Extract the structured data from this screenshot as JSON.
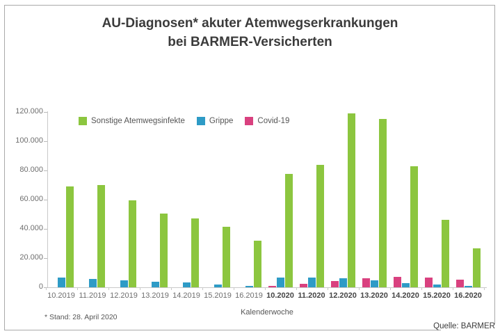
{
  "title": {
    "line1": "AU-Diagnosen* akuter Atemwegserkrankungen",
    "line2": "bei BARMER-Versicherten"
  },
  "footnote": "* Stand: 28. April 2020",
  "source": "Quelle: BARMER",
  "colors": {
    "sonstige_green": "#8cc63f",
    "grippe_blue": "#2e9bc6",
    "covid_pink": "#d9417f",
    "axis_gray": "#c9c9c9",
    "text_gray": "#6e6e6e"
  },
  "chart_data": {
    "type": "bar",
    "title": "AU-Diagnosen* akuter Atemwegserkrankungen bei BARMER-Versicherten",
    "xlabel": "Kalenderwoche",
    "ylabel": "",
    "ylim": [
      0,
      120000
    ],
    "ytick_step": 20000,
    "ytick_labels": [
      "0",
      "20.000",
      "40.000",
      "60.000",
      "80.000",
      "100.000",
      "120.000"
    ],
    "grid": false,
    "legend_position": "top-left inside plot",
    "bar_order_in_group": [
      "Covid-19",
      "Grippe",
      "Sonstige Atemwegsinfekte"
    ],
    "categories": [
      {
        "label": "10.2019",
        "bold": false
      },
      {
        "label": "11.2019",
        "bold": false
      },
      {
        "label": "12.2019",
        "bold": false
      },
      {
        "label": "13.2019",
        "bold": false
      },
      {
        "label": "14.2019",
        "bold": false
      },
      {
        "label": "15.2019",
        "bold": false
      },
      {
        "label": "16.2019",
        "bold": false
      },
      {
        "label": "10.2020",
        "bold": true
      },
      {
        "label": "11.2020",
        "bold": true
      },
      {
        "label": "12.2020",
        "bold": true
      },
      {
        "label": "13.2020",
        "bold": true
      },
      {
        "label": "14.2020",
        "bold": true
      },
      {
        "label": "15.2020",
        "bold": true
      },
      {
        "label": "16.2020",
        "bold": true
      }
    ],
    "series": [
      {
        "name": "Sonstige Atemwegsinfekte",
        "color": "#8cc63f",
        "values": [
          69000,
          70000,
          59500,
          50500,
          47000,
          41500,
          32000,
          77500,
          84000,
          119000,
          115000,
          83000,
          46000,
          26500
        ]
      },
      {
        "name": "Grippe",
        "color": "#2e9bc6",
        "values": [
          6700,
          5900,
          4900,
          3700,
          3200,
          1900,
          1000,
          6500,
          6800,
          6200,
          4600,
          2900,
          1900,
          800
        ]
      },
      {
        "name": "Covid-19",
        "color": "#d9417f",
        "values": [
          0,
          0,
          0,
          0,
          0,
          0,
          0,
          1000,
          2500,
          4500,
          6000,
          7000,
          6500,
          5000
        ]
      }
    ]
  }
}
